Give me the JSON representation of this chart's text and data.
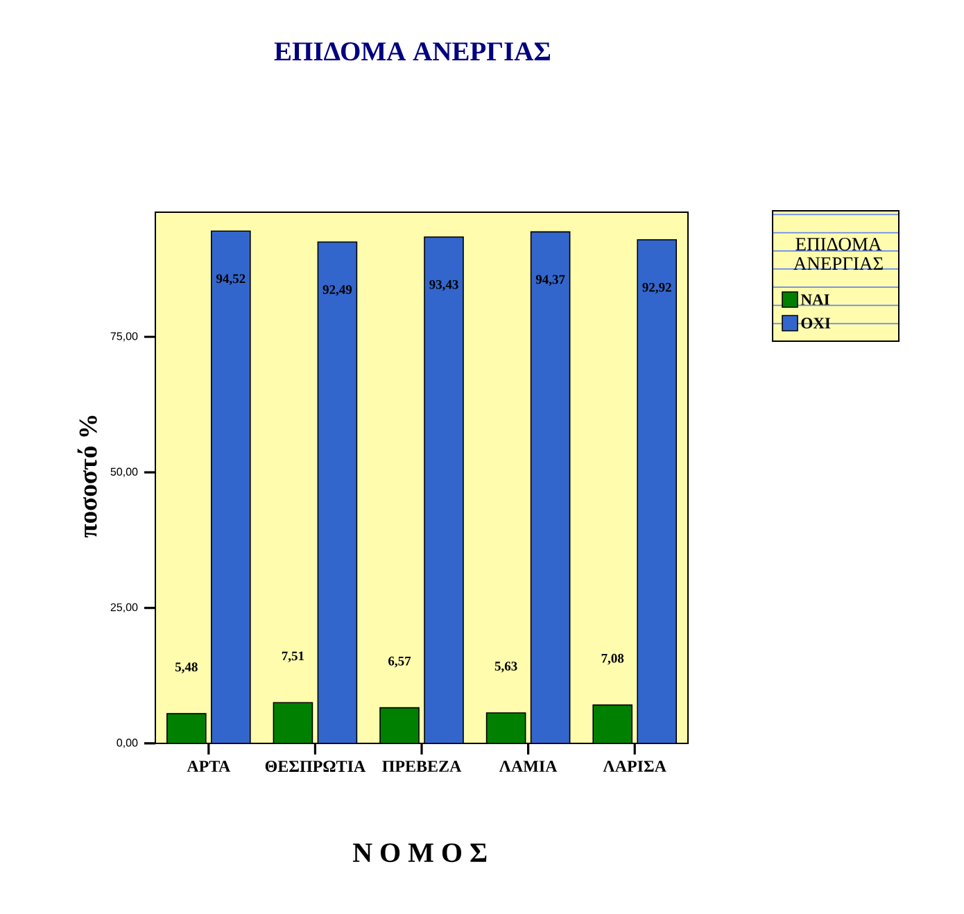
{
  "chart_data": {
    "type": "bar",
    "title": "ΕΠΙΔΟΜΑ ΑΝΕΡΓΙΑΣ",
    "xlabel": "Ν Ο Μ Ο Σ",
    "ylabel": "ποσοστό %",
    "legend_title": "ΕΠΙΔΟΜΑ ΑΝΕΡΓΙΑΣ",
    "categories": [
      "ΑΡΤΑ",
      "ΘΕΣΠΡΩΤΙΑ",
      "ΠΡΕΒΕΖΑ",
      "ΛΑΜΙΑ",
      "ΛΑΡΙΣΑ"
    ],
    "series": [
      {
        "name": "ΝΑΙ",
        "color": "#008000",
        "values": [
          5.48,
          7.51,
          6.57,
          5.63,
          7.08
        ],
        "value_labels": [
          "5,48",
          "7,51",
          "6,57",
          "5,63",
          "7,08"
        ]
      },
      {
        "name": "ΟΧΙ",
        "color": "#3366cc",
        "values": [
          94.52,
          92.49,
          93.43,
          94.37,
          92.92
        ],
        "value_labels": [
          "94,52",
          "92,49",
          "93,43",
          "94,37",
          "92,92"
        ]
      }
    ],
    "ylim": [
      0,
      98
    ],
    "yticks": [
      {
        "value": 0,
        "label": "0,00"
      },
      {
        "value": 25,
        "label": "25,00"
      },
      {
        "value": 50,
        "label": "50,00"
      },
      {
        "value": 75,
        "label": "75,00"
      }
    ],
    "legend": "right"
  }
}
